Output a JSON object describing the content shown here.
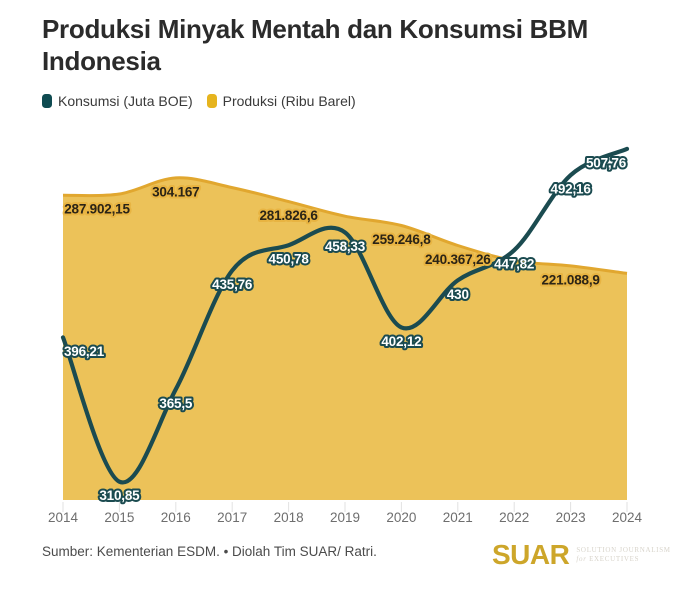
{
  "title": "Produksi Minyak Mentah dan Konsumsi BBM Indonesia",
  "legend": {
    "items": [
      {
        "label": "Konsumsi (Juta BOE)",
        "color": "#0f4b51"
      },
      {
        "label": "Produksi (Ribu Barel)",
        "color": "#e6b41e"
      }
    ]
  },
  "chart_data": {
    "type": "line",
    "title": "Produksi Minyak Mentah dan Konsumsi BBM Indonesia",
    "x": [
      2014,
      2015,
      2016,
      2017,
      2018,
      2019,
      2020,
      2021,
      2022,
      2023,
      2024
    ],
    "x_tick_labels": [
      "2014",
      "2015",
      "2016",
      "2017",
      "2018",
      "2019",
      "2020",
      "2021",
      "2022",
      "2023",
      "2024"
    ],
    "grid": false,
    "legend_position": "top-left",
    "series": [
      {
        "name": "Konsumsi (Juta BOE)",
        "type": "line",
        "unit": "Juta BOE",
        "color": "#1b4b50",
        "axis_range": [
          300,
          513
        ],
        "values": [
          396.21,
          310.85,
          365.5,
          435.76,
          450.78,
          458.33,
          402.12,
          430,
          447.82,
          492.16,
          507.76
        ],
        "point_labels": [
          "396,21",
          "310,85",
          "365,5",
          "435,76",
          "450,78",
          "458,33",
          "402,12",
          "430",
          "447,82",
          "492,16",
          "507,76"
        ]
      },
      {
        "name": "Produksi (Ribu Barel)",
        "type": "area",
        "unit": "Ribu Barel",
        "fill_color": "#ecc259",
        "stroke_color": "#e1a72f",
        "axis_range": [
          0,
          340000
        ],
        "values": [
          287902.15,
          289000,
          304167,
          295000,
          281826.6,
          268000,
          259246.8,
          240367.26,
          226000,
          221088.9,
          214000
        ],
        "estimated_from_pixels": [
          false,
          true,
          false,
          true,
          false,
          true,
          false,
          false,
          true,
          false,
          true
        ],
        "point_labels": [
          "287.902,15",
          null,
          "304.167",
          null,
          "281.826,6",
          null,
          "259.246,8",
          "240.367,26",
          null,
          "221.088,9",
          null
        ]
      }
    ]
  },
  "footer": {
    "source": "Sumber: Kementerian ESDM. • Diolah Tim SUAR/ Ratri.",
    "logo": {
      "name": "SUAR",
      "color": "#cda62a",
      "tagline_line1": "SOLUTION JOURNALISM",
      "tagline_line2_prefix": "for",
      "tagline_line2": "EXECUTIVES"
    }
  }
}
